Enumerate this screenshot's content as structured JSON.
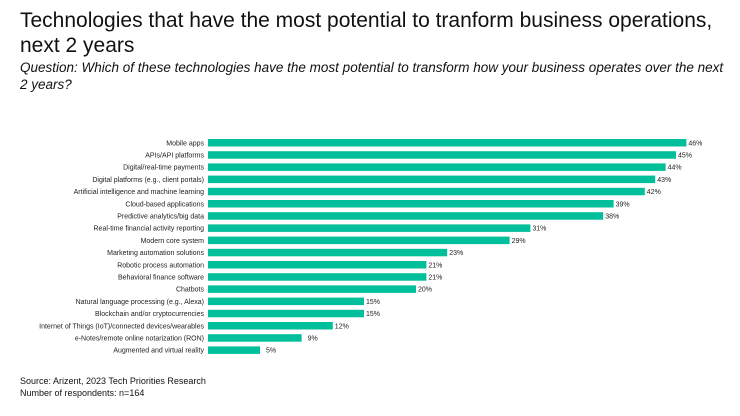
{
  "title": "Technologies that have the most potential to tranform business operations, next 2 years",
  "subtitle": "Question: Which of these technologies have the most potential to transform how your business operates over the next 2 years?",
  "source": "Source: Arizent, 2023 Tech Priorities Research",
  "respondents": "Number of respondents: n=164",
  "chart_data": {
    "type": "bar",
    "orientation": "horizontal",
    "bar_color": "#00BF9A",
    "categories": [
      "Mobile apps",
      "APIs/API platforms",
      "Digital/real-time payments",
      "Digital platforms (e.g., client portals)",
      "Artificial intelligence and machine learning",
      "Cloud-based applications",
      "Predictive analytics/big data",
      "Real-time financial activity reporting",
      "Modern core system",
      "Marketing automation solutions",
      "Robotic process automation",
      "Behavioral finance software",
      "Chatbots",
      "Natural language processing (e.g., Alexa)",
      "Blockchain and/or cryptocurrencies",
      "Internet of Things (IoT)/connected devices/wearables",
      "e-Notes/remote online notarization (RON)",
      "Augmented and virtual reality"
    ],
    "values": [
      46,
      45,
      44,
      43,
      42,
      39,
      38,
      31,
      29,
      23,
      21,
      21,
      20,
      15,
      15,
      12,
      9,
      5
    ],
    "value_labels": [
      "46%",
      "45%",
      "44%",
      "43%",
      "42%",
      "39%",
      "38%",
      "31%",
      "29%",
      "23%",
      "21%",
      "21%",
      "20%",
      "15%",
      "15%",
      "12%",
      "9%",
      "5%"
    ],
    "grid": false,
    "legend": "none"
  }
}
